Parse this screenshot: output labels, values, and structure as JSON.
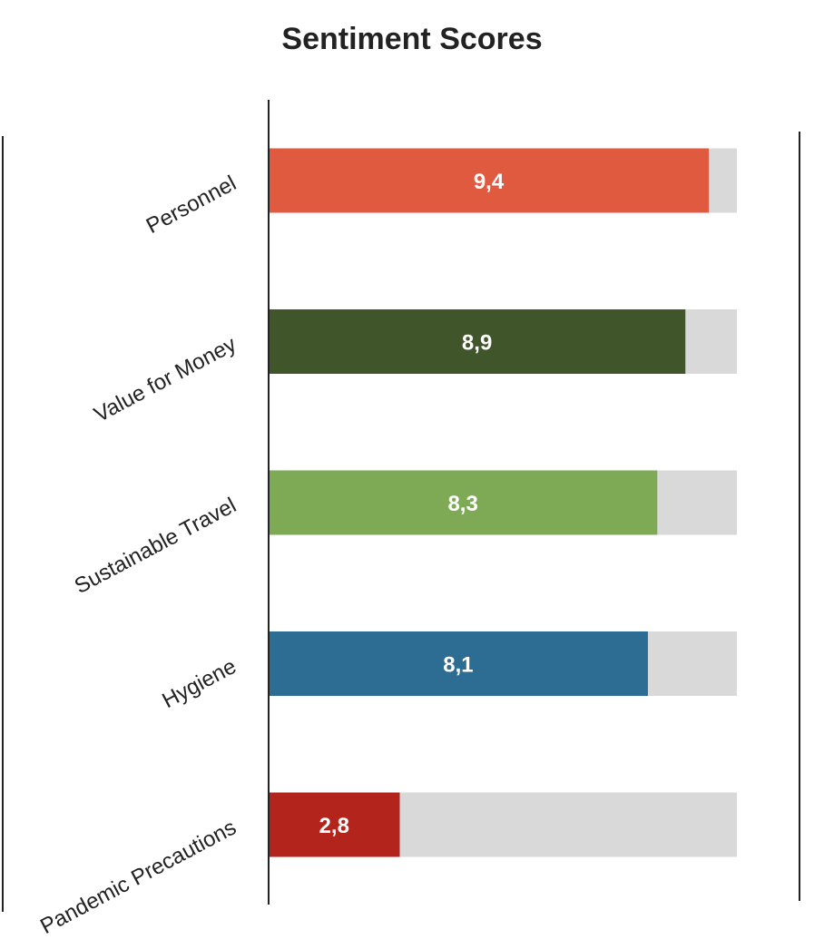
{
  "chart_data": {
    "type": "bar",
    "orientation": "horizontal",
    "title": "Sentiment Scores",
    "categories": [
      "Personnel",
      "Value for Money",
      "Sustainable Travel",
      "Hygiene",
      "Pandemic Precautions"
    ],
    "values": [
      9.4,
      8.9,
      8.3,
      8.1,
      2.8
    ],
    "value_labels": [
      "9,4",
      "8,9",
      "8,3",
      "8,1",
      "2,8"
    ],
    "max_value": 10,
    "xlim": [
      0,
      10
    ],
    "bar_colors": [
      "#E05A40",
      "#41552B",
      "#7EAA56",
      "#2E6D93",
      "#B3241C"
    ],
    "track_color": "#D9D9D9",
    "label_color": "#222222",
    "value_label_color": "#FFFFFF",
    "grid": false,
    "legend": "none"
  }
}
